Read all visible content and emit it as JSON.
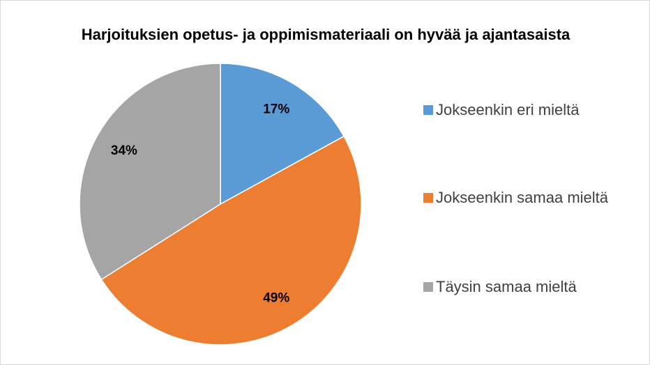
{
  "chart_data": {
    "type": "pie",
    "title": "Harjoituksien opetus- ja oppimismateriaali on hyvää ja ajantasaista",
    "categories": [
      "Jokseenkin eri mieltä",
      "Jokseenkin samaa mieltä",
      "Täysin samaa mieltä"
    ],
    "values": [
      17,
      49,
      34
    ],
    "value_labels": [
      "17%",
      "49%",
      "34%"
    ],
    "colors": [
      "#5b9bd5",
      "#ed7d31",
      "#a5a5a5"
    ],
    "legend": "right"
  }
}
